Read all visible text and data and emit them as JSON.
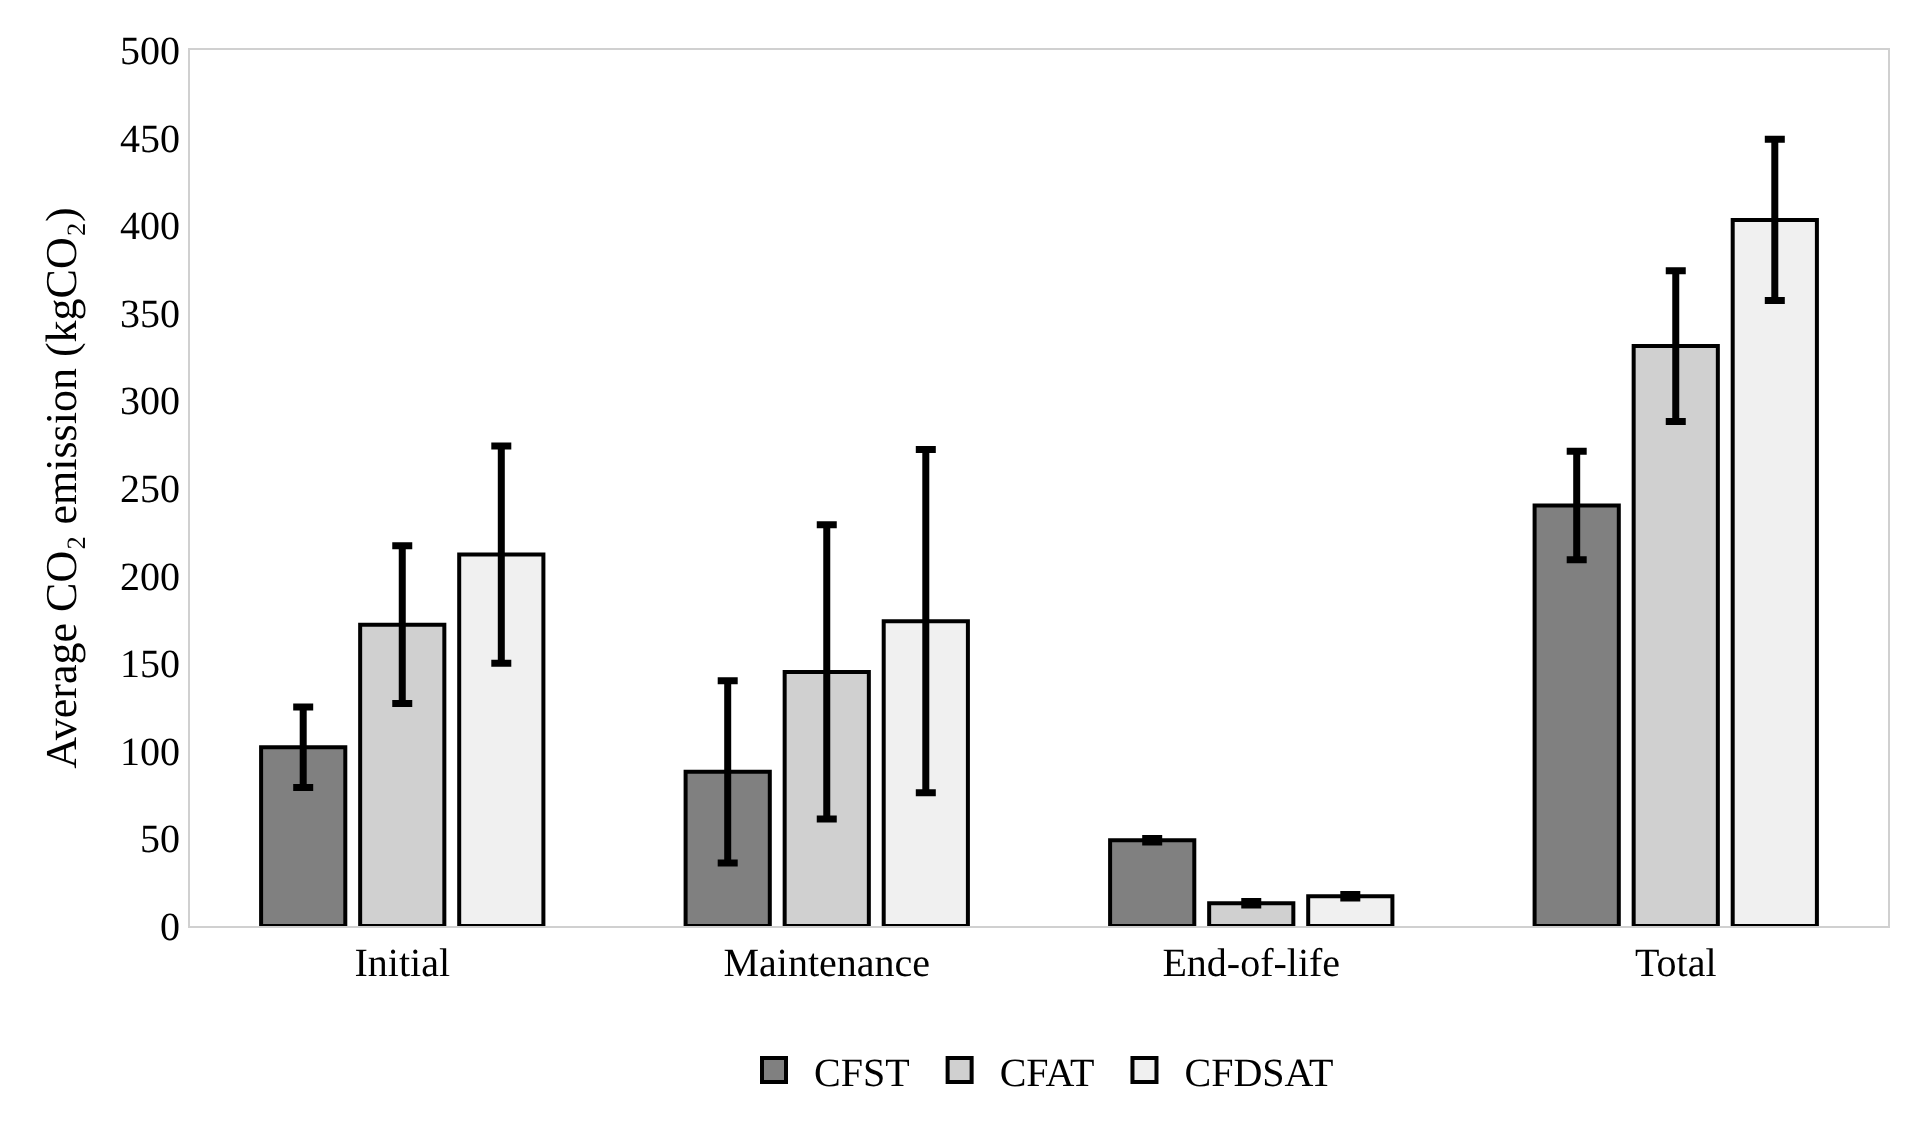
{
  "chart_data": {
    "type": "bar",
    "ylabel": "Average CO₂ emission (kgCO₂)",
    "categories": [
      "Initial",
      "Maintenance",
      "End-of-life",
      "Total"
    ],
    "series": [
      {
        "name": "CFST",
        "color": "#808080",
        "values": [
          102,
          88,
          49,
          240
        ],
        "errors": [
          23,
          52,
          1,
          31
        ]
      },
      {
        "name": "CFAT",
        "color": "#d0d0d0",
        "values": [
          172,
          145,
          13,
          331
        ],
        "errors": [
          45,
          84,
          1,
          43
        ]
      },
      {
        "name": "CFDSAT",
        "color": "#f0f0f0",
        "values": [
          212,
          174,
          17,
          403
        ],
        "errors": [
          62,
          98,
          1,
          46
        ]
      }
    ],
    "ylim": [
      0,
      500
    ],
    "yticks": [
      0,
      50,
      100,
      150,
      200,
      250,
      300,
      350,
      400,
      450,
      500
    ],
    "legend": "bottom"
  }
}
